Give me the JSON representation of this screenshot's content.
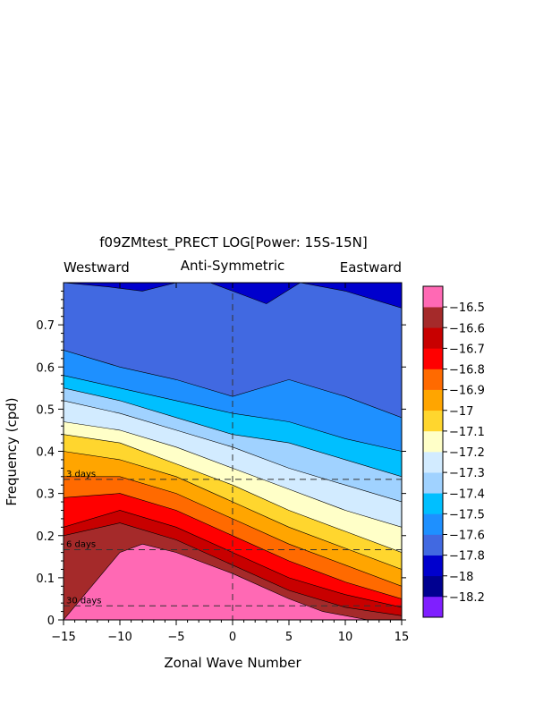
{
  "chart_data": {
    "type": "heatmap",
    "title": "f09ZMtest_PRECT LOG[Power: 15S-15N]",
    "subtitle": "Anti-Symmetric",
    "left_label": "Westward",
    "right_label": "Eastward",
    "xlabel": "Zonal Wave Number",
    "ylabel": "Frequency (cpd)",
    "xlim": [
      -15,
      15
    ],
    "ylim": [
      0,
      0.8
    ],
    "x_ticks": [
      -15,
      -10,
      -5,
      0,
      5,
      10,
      15
    ],
    "x_tick_labels": [
      "−15",
      "−10",
      "−5",
      "0",
      "5",
      "10",
      "15"
    ],
    "y_ticks": [
      0,
      0.1,
      0.2,
      0.3,
      0.4,
      0.5,
      0.6,
      0.7
    ],
    "y_tick_labels": [
      "0",
      "0.1",
      "0.2",
      "0.3",
      "0.4",
      "0.5",
      "0.6",
      "0.7"
    ],
    "period_lines": [
      {
        "label": "3 days",
        "frequency": 0.3333
      },
      {
        "label": "6 days",
        "frequency": 0.1667
      },
      {
        "label": "30 days",
        "frequency": 0.0333
      }
    ],
    "zero_wavenumber_line": 0,
    "colorbar": {
      "labels": [
        "−16.5",
        "−16.6",
        "−16.7",
        "−16.8",
        "−16.9",
        "−17",
        "−17.1",
        "−17.2",
        "−17.3",
        "−17.4",
        "−17.5",
        "−17.6",
        "−17.8",
        "−18",
        "−18.2"
      ],
      "colors": [
        "#7f1fff",
        "#000090",
        "#0000cd",
        "#4169e1",
        "#1e90ff",
        "#00bfff",
        "#a0d2ff",
        "#d2ebff",
        "#ffffc8",
        "#ffd62e",
        "#ffa500",
        "#ff6a00",
        "#ff0000",
        "#c80000",
        "#a52a2a",
        "#ff69b4"
      ]
    },
    "contour_boundaries": [
      {
        "level": "−16.5",
        "x": [
          -15,
          -10,
          -8,
          -5,
          0,
          5,
          8,
          12,
          15
        ],
        "y": [
          0,
          0.16,
          0.18,
          0.16,
          0.11,
          0.05,
          0.02,
          0,
          0
        ]
      },
      {
        "level": "−16.6",
        "x": [
          -15,
          -10,
          -5,
          0,
          5,
          10,
          15
        ],
        "y": [
          0.2,
          0.23,
          0.19,
          0.13,
          0.07,
          0.03,
          0.01
        ]
      },
      {
        "level": "−16.7",
        "x": [
          -15,
          -10,
          -5,
          0,
          5,
          10,
          15
        ],
        "y": [
          0.22,
          0.26,
          0.22,
          0.16,
          0.1,
          0.06,
          0.03
        ]
      },
      {
        "level": "−16.8",
        "x": [
          -15,
          -10,
          -5,
          0,
          5,
          10,
          15
        ],
        "y": [
          0.29,
          0.3,
          0.26,
          0.2,
          0.14,
          0.09,
          0.05
        ]
      },
      {
        "level": "−16.9",
        "x": [
          -15,
          -10,
          -5,
          0,
          5,
          10,
          15
        ],
        "y": [
          0.34,
          0.34,
          0.3,
          0.24,
          0.18,
          0.13,
          0.08
        ]
      },
      {
        "level": "−17",
        "x": [
          -15,
          -10,
          -5,
          0,
          5,
          10,
          15
        ],
        "y": [
          0.4,
          0.38,
          0.34,
          0.28,
          0.22,
          0.17,
          0.12
        ]
      },
      {
        "level": "−17.1",
        "x": [
          -15,
          -10,
          -5,
          0,
          5,
          10,
          15
        ],
        "y": [
          0.44,
          0.42,
          0.37,
          0.32,
          0.26,
          0.21,
          0.16
        ]
      },
      {
        "level": "−17.2",
        "x": [
          -15,
          -10,
          -5,
          0,
          5,
          10,
          15
        ],
        "y": [
          0.47,
          0.45,
          0.41,
          0.36,
          0.31,
          0.26,
          0.22
        ]
      },
      {
        "level": "−17.3",
        "x": [
          -15,
          -10,
          -5,
          0,
          5,
          10,
          15
        ],
        "y": [
          0.52,
          0.49,
          0.45,
          0.41,
          0.36,
          0.32,
          0.28
        ]
      },
      {
        "level": "−17.4",
        "x": [
          -15,
          -10,
          -5,
          0,
          5,
          10,
          15
        ],
        "y": [
          0.55,
          0.52,
          0.48,
          0.44,
          0.42,
          0.38,
          0.34
        ]
      },
      {
        "level": "−17.5",
        "x": [
          -15,
          -10,
          -5,
          0,
          5,
          10,
          15
        ],
        "y": [
          0.58,
          0.55,
          0.52,
          0.49,
          0.47,
          0.43,
          0.4
        ]
      },
      {
        "level": "−17.6",
        "x": [
          -15,
          -10,
          -5,
          0,
          5,
          10,
          15
        ],
        "y": [
          0.64,
          0.6,
          0.57,
          0.53,
          0.57,
          0.53,
          0.48
        ]
      },
      {
        "level": "−17.8",
        "x": [
          -15,
          -11,
          -8,
          -5,
          -2,
          0,
          3,
          6,
          10,
          15
        ],
        "y": [
          0.8,
          0.79,
          0.78,
          0.8,
          0.8,
          0.78,
          0.75,
          0.8,
          0.78,
          0.74
        ]
      }
    ]
  }
}
